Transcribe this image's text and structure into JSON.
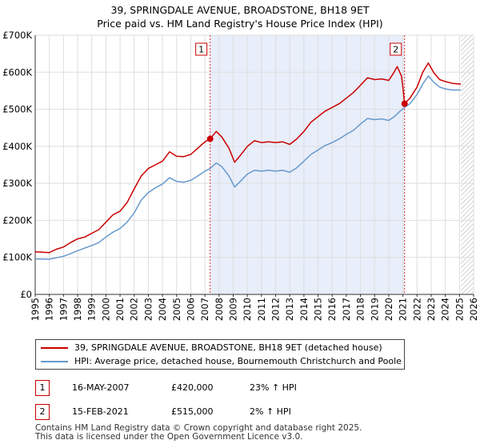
{
  "chart_data": {
    "type": "line",
    "title": "39, SPRINGDALE AVENUE, BROADSTONE, BH18 9ET",
    "subtitle": "Price paid vs. HM Land Registry's House Price Index (HPI)",
    "xlim": [
      1995,
      2026
    ],
    "ylim": [
      0,
      700000
    ],
    "x_ticks": [
      1995,
      1996,
      1997,
      1998,
      1999,
      2000,
      2001,
      2002,
      2003,
      2004,
      2005,
      2006,
      2007,
      2008,
      2009,
      2010,
      2011,
      2012,
      2013,
      2014,
      2015,
      2016,
      2017,
      2018,
      2019,
      2020,
      2021,
      2022,
      2023,
      2024,
      2025,
      2026
    ],
    "y_ticks": [
      {
        "value": 0,
        "label": "£0"
      },
      {
        "value": 100000,
        "label": "£100K"
      },
      {
        "value": 200000,
        "label": "£200K"
      },
      {
        "value": 300000,
        "label": "£300K"
      },
      {
        "value": 400000,
        "label": "£400K"
      },
      {
        "value": 500000,
        "label": "£500K"
      },
      {
        "value": 600000,
        "label": "£600K"
      },
      {
        "value": 700000,
        "label": "£700K"
      }
    ],
    "shaded_range": [
      2007.37,
      2021.12
    ],
    "future_from": 2025.1,
    "series": [
      {
        "name": "39, SPRINGDALE AVENUE, BROADSTONE, BH18 9ET (detached house)",
        "color": "#cc0000",
        "points": [
          [
            1995,
            115000
          ],
          [
            1996,
            113000
          ],
          [
            1996.5,
            122000
          ],
          [
            1997,
            128000
          ],
          [
            1997.5,
            140000
          ],
          [
            1998,
            150000
          ],
          [
            1998.5,
            155000
          ],
          [
            1999,
            165000
          ],
          [
            1999.5,
            175000
          ],
          [
            2000,
            195000
          ],
          [
            2000.5,
            215000
          ],
          [
            2001,
            225000
          ],
          [
            2001.5,
            248000
          ],
          [
            2002,
            285000
          ],
          [
            2002.5,
            320000
          ],
          [
            2003,
            340000
          ],
          [
            2003.5,
            350000
          ],
          [
            2004,
            360000
          ],
          [
            2004.5,
            385000
          ],
          [
            2005,
            373000
          ],
          [
            2005.5,
            372000
          ],
          [
            2006,
            378000
          ],
          [
            2006.5,
            395000
          ],
          [
            2007,
            412000
          ],
          [
            2007.37,
            420000
          ],
          [
            2007.8,
            440000
          ],
          [
            2008.2,
            425000
          ],
          [
            2008.7,
            395000
          ],
          [
            2009.1,
            357000
          ],
          [
            2009.5,
            375000
          ],
          [
            2010,
            400000
          ],
          [
            2010.5,
            415000
          ],
          [
            2011,
            410000
          ],
          [
            2011.5,
            412000
          ],
          [
            2012,
            410000
          ],
          [
            2012.5,
            412000
          ],
          [
            2013,
            405000
          ],
          [
            2013.5,
            420000
          ],
          [
            2014,
            440000
          ],
          [
            2014.5,
            465000
          ],
          [
            2015,
            480000
          ],
          [
            2015.5,
            495000
          ],
          [
            2016,
            505000
          ],
          [
            2016.5,
            515000
          ],
          [
            2017,
            530000
          ],
          [
            2017.5,
            545000
          ],
          [
            2018,
            565000
          ],
          [
            2018.5,
            585000
          ],
          [
            2019,
            580000
          ],
          [
            2019.5,
            582000
          ],
          [
            2020,
            578000
          ],
          [
            2020.3,
            595000
          ],
          [
            2020.6,
            615000
          ],
          [
            2020.9,
            590000
          ],
          [
            2021.0,
            560000
          ],
          [
            2021.12,
            515000
          ],
          [
            2021.5,
            530000
          ],
          [
            2022,
            560000
          ],
          [
            2022.4,
            600000
          ],
          [
            2022.8,
            625000
          ],
          [
            2023.2,
            598000
          ],
          [
            2023.6,
            580000
          ],
          [
            2024,
            575000
          ],
          [
            2024.5,
            570000
          ],
          [
            2025.1,
            568000
          ]
        ]
      },
      {
        "name": "HPI: Average price, detached house, Bournemouth Christchurch and Poole",
        "color": "#6699cc",
        "points": [
          [
            1995,
            96000
          ],
          [
            1996,
            95000
          ],
          [
            1996.5,
            99000
          ],
          [
            1997,
            103000
          ],
          [
            1997.5,
            110000
          ],
          [
            1998,
            118000
          ],
          [
            1998.5,
            125000
          ],
          [
            1999,
            132000
          ],
          [
            1999.5,
            140000
          ],
          [
            2000,
            155000
          ],
          [
            2000.5,
            168000
          ],
          [
            2001,
            178000
          ],
          [
            2001.5,
            195000
          ],
          [
            2002,
            220000
          ],
          [
            2002.5,
            255000
          ],
          [
            2003,
            275000
          ],
          [
            2003.5,
            288000
          ],
          [
            2004,
            298000
          ],
          [
            2004.5,
            315000
          ],
          [
            2005,
            305000
          ],
          [
            2005.5,
            303000
          ],
          [
            2006,
            308000
          ],
          [
            2006.5,
            320000
          ],
          [
            2007,
            333000
          ],
          [
            2007.37,
            340000
          ],
          [
            2007.8,
            355000
          ],
          [
            2008.2,
            345000
          ],
          [
            2008.7,
            320000
          ],
          [
            2009.1,
            290000
          ],
          [
            2009.5,
            305000
          ],
          [
            2010,
            325000
          ],
          [
            2010.5,
            335000
          ],
          [
            2011,
            333000
          ],
          [
            2011.5,
            335000
          ],
          [
            2012,
            333000
          ],
          [
            2012.5,
            335000
          ],
          [
            2013,
            330000
          ],
          [
            2013.5,
            342000
          ],
          [
            2014,
            360000
          ],
          [
            2014.5,
            378000
          ],
          [
            2015,
            390000
          ],
          [
            2015.5,
            402000
          ],
          [
            2016,
            410000
          ],
          [
            2016.5,
            420000
          ],
          [
            2017,
            432000
          ],
          [
            2017.5,
            443000
          ],
          [
            2018,
            460000
          ],
          [
            2018.5,
            475000
          ],
          [
            2019,
            472000
          ],
          [
            2019.5,
            474000
          ],
          [
            2020,
            470000
          ],
          [
            2020.4,
            480000
          ],
          [
            2020.8,
            495000
          ],
          [
            2021.12,
            505000
          ],
          [
            2021.5,
            515000
          ],
          [
            2022,
            540000
          ],
          [
            2022.4,
            568000
          ],
          [
            2022.8,
            590000
          ],
          [
            2023.2,
            572000
          ],
          [
            2023.6,
            560000
          ],
          [
            2024,
            555000
          ],
          [
            2024.5,
            552000
          ],
          [
            2025.1,
            552000
          ]
        ]
      }
    ],
    "sales": [
      {
        "label": "1",
        "x": 2007.37,
        "y": 420000,
        "date": "16-MAY-2007",
        "price": "£420,000",
        "hpi": "23% ↑ HPI"
      },
      {
        "label": "2",
        "x": 2021.12,
        "y": 515000,
        "date": "15-FEB-2021",
        "price": "£515,000",
        "hpi": "2% ↑ HPI"
      }
    ],
    "legend_position": "below"
  },
  "footer": {
    "line1": "Contains HM Land Registry data © Crown copyright and database right 2025.",
    "line2": "This data is licensed under the Open Government Licence v3.0."
  }
}
